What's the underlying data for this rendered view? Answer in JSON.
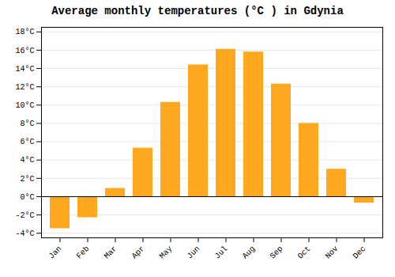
{
  "chart_data": {
    "type": "bar",
    "title": "Average monthly temperatures (°C ) in Gdynia",
    "categories": [
      "Jan",
      "Feb",
      "Mar",
      "Apr",
      "May",
      "Jun",
      "Jul",
      "Aug",
      "Sep",
      "Oct",
      "Nov",
      "Dec"
    ],
    "values": [
      -3.5,
      -2.3,
      0.9,
      5.3,
      10.3,
      14.4,
      16.1,
      15.8,
      12.3,
      8.0,
      3.0,
      -0.7
    ],
    "color": "#FFA820",
    "ylim": [
      -4.5,
      18.5
    ],
    "yticks": [
      {
        "value": -4,
        "label": "-4°C"
      },
      {
        "value": -2,
        "label": "-2°C"
      },
      {
        "value": 0,
        "label": "0°C"
      },
      {
        "value": 2,
        "label": "2°C"
      },
      {
        "value": 4,
        "label": "4°C"
      },
      {
        "value": 6,
        "label": "6°C"
      },
      {
        "value": 8,
        "label": "8°C"
      },
      {
        "value": 10,
        "label": "10°C"
      },
      {
        "value": 12,
        "label": "12°C"
      },
      {
        "value": 14,
        "label": "14°C"
      },
      {
        "value": 16,
        "label": "16°C"
      },
      {
        "value": 18,
        "label": "18°C"
      }
    ],
    "grid": true
  }
}
